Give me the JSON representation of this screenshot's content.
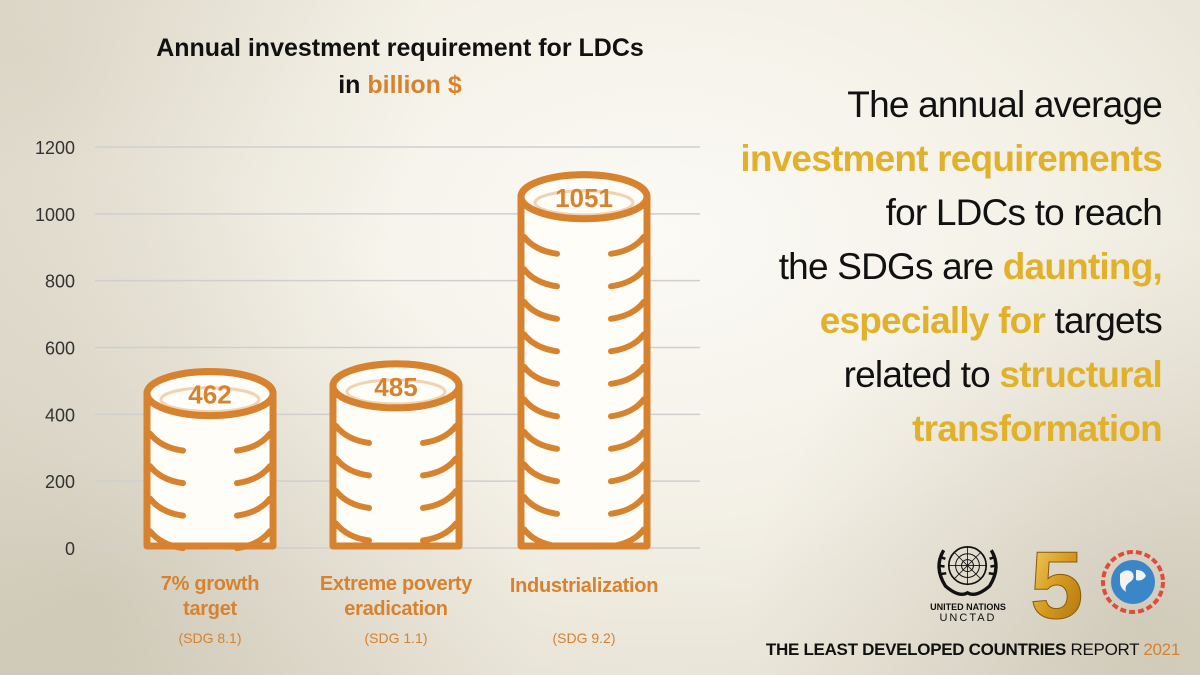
{
  "title": {
    "line1": "Annual investment requirement for LDCs",
    "line2_prefix": "in ",
    "line2_unit": "billion $"
  },
  "headline": {
    "l1": "The annual average",
    "l2": "investment requirements",
    "l3": "for LDCs to reach",
    "l4a": "the SDGs are ",
    "l4b": "daunting,",
    "l5a": "especially for",
    "l5b": " targets",
    "l6a": "related to ",
    "l6b": "structural",
    "l7": "transformation"
  },
  "footer": {
    "un_line1": "UNITED NATIONS",
    "un_line2": "UNCTAD",
    "anniversary": "5",
    "report_bold": "THE LEAST DEVELOPED COUNTRIES",
    "report_rest": " REPORT ",
    "report_year": "2021"
  },
  "colors": {
    "accent": "#d6822f",
    "highlight": "#e1b12c",
    "grid": "#cfcfcf",
    "text": "#111111"
  },
  "chart_data": {
    "type": "bar",
    "style": "coin stacks",
    "categories": [
      "7% growth target",
      "Extreme poverty eradication",
      "Industrialization"
    ],
    "category_subtitles": [
      "(SDG 8.1)",
      "(SDG 1.1)",
      "(SDG 9.2)"
    ],
    "values": [
      462,
      485,
      1051
    ],
    "data_labels": [
      "462",
      "485",
      "1051"
    ],
    "ylim": [
      0,
      1200
    ],
    "yticks": [
      0,
      200,
      400,
      600,
      800,
      1000,
      1200
    ],
    "grid": true,
    "legend": "none"
  }
}
